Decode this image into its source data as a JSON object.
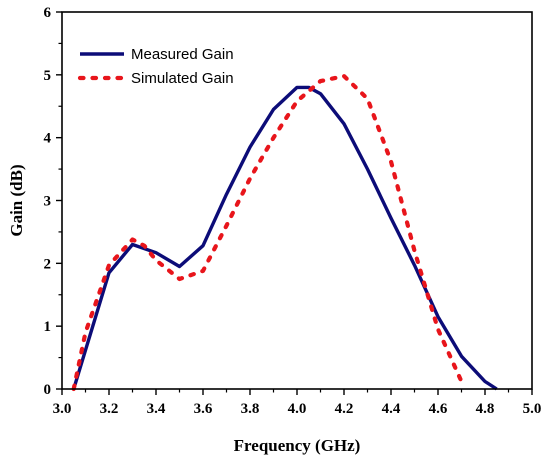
{
  "chart_data": {
    "type": "line",
    "title": "",
    "xlabel": "Frequency (GHz)",
    "ylabel": "Gain (dB)",
    "xlim": [
      3.0,
      5.0
    ],
    "ylim": [
      0,
      6
    ],
    "xticks": [
      "3.0",
      "3.2",
      "3.4",
      "3.6",
      "3.8",
      "4.0",
      "4.2",
      "4.4",
      "4.6",
      "4.8",
      "5.0"
    ],
    "yticks": [
      "0",
      "1",
      "2",
      "3",
      "4",
      "5",
      "6"
    ],
    "grid": false,
    "legend_position": "top-left",
    "series": [
      {
        "name": "Measured Gain",
        "color": "#0c0c78",
        "style": "solid",
        "x": [
          3.05,
          3.2,
          3.3,
          3.4,
          3.5,
          3.6,
          3.7,
          3.8,
          3.9,
          4.0,
          4.05,
          4.1,
          4.2,
          4.3,
          4.4,
          4.5,
          4.6,
          4.7,
          4.8,
          4.85
        ],
        "y": [
          0.0,
          1.85,
          2.3,
          2.17,
          1.95,
          2.28,
          3.1,
          3.85,
          4.45,
          4.8,
          4.8,
          4.7,
          4.22,
          3.5,
          2.72,
          1.97,
          1.15,
          0.52,
          0.12,
          0.0
        ]
      },
      {
        "name": "Simulated Gain",
        "color": "#e8151b",
        "style": "dotted",
        "x": [
          3.05,
          3.1,
          3.2,
          3.3,
          3.35,
          3.4,
          3.5,
          3.6,
          3.7,
          3.8,
          3.9,
          4.0,
          4.1,
          4.2,
          4.3,
          4.4,
          4.5,
          4.6,
          4.7
        ],
        "y": [
          0.0,
          0.9,
          1.97,
          2.38,
          2.28,
          2.05,
          1.75,
          1.88,
          2.6,
          3.35,
          4.0,
          4.58,
          4.9,
          4.98,
          4.62,
          3.62,
          2.2,
          0.95,
          0.12
        ]
      }
    ]
  }
}
